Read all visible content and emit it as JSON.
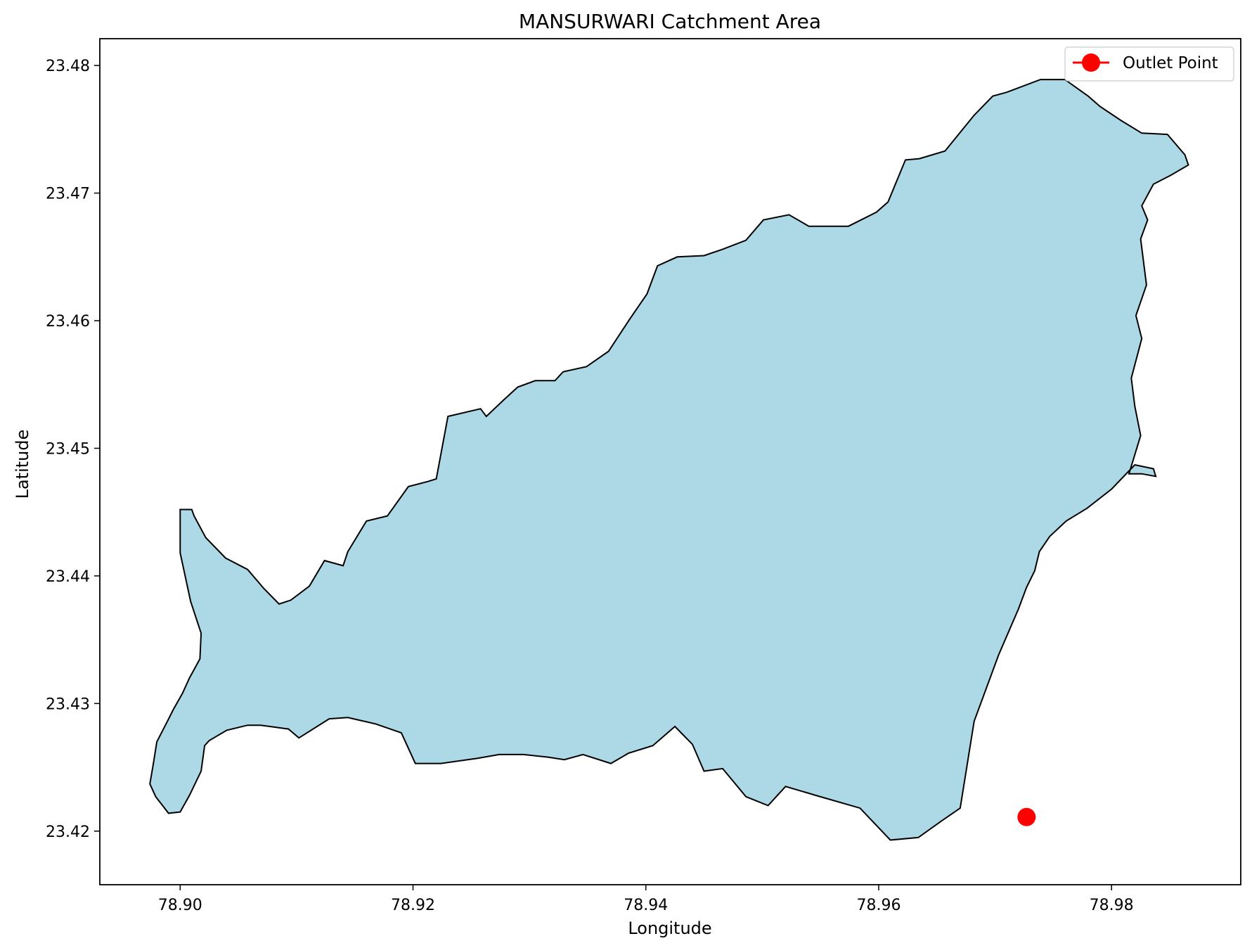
{
  "title": "MANSURWARI Catchment Area",
  "xlabel": "Longitude",
  "ylabel": "Latitude",
  "colors": {
    "catchment_fill": "#add8e6",
    "catchment_edge": "#000000",
    "outlet": "#ff0000",
    "axes": "#000000",
    "background": "#ffffff"
  },
  "chart_data": {
    "type": "scatter",
    "title": "MANSURWARI Catchment Area",
    "xlabel": "Longitude",
    "ylabel": "Latitude",
    "xlim": [
      78.8931,
      78.9911
    ],
    "ylim": [
      23.4158,
      23.4821
    ],
    "grid": false,
    "legend_placement": "top-right",
    "x_ticks": [
      78.9,
      78.92,
      78.94,
      78.96,
      78.98
    ],
    "x_tick_labels": [
      "78.90",
      "78.92",
      "78.94",
      "78.96",
      "78.98"
    ],
    "y_ticks": [
      23.42,
      23.43,
      23.44,
      23.45,
      23.46,
      23.47,
      23.48
    ],
    "y_tick_labels": [
      "23.42",
      "23.43",
      "23.44",
      "23.45",
      "23.46",
      "23.47",
      "23.48"
    ],
    "catchment_boundary": {
      "lon": [
        78.9,
        78.901,
        78.9012,
        78.9022,
        78.9039,
        78.9058,
        78.9072,
        78.9085,
        78.9095,
        78.9111,
        78.9124,
        78.914,
        78.9144,
        78.916,
        78.9178,
        78.9196,
        78.9213,
        78.922,
        78.923,
        78.9258,
        78.9263,
        78.9278,
        78.929,
        78.9305,
        78.9322,
        78.9329,
        78.9349,
        78.9368,
        78.9386,
        78.9401,
        78.941,
        78.9427,
        78.945,
        78.9466,
        78.9486,
        78.9501,
        78.9523,
        78.954,
        78.9574,
        78.9598,
        78.9608,
        78.9623,
        78.9635,
        78.9657,
        78.9682,
        78.9698,
        78.971,
        78.9739,
        78.976,
        78.978,
        78.979,
        78.9808,
        78.9826,
        78.9848,
        78.9863,
        78.9866,
        78.9851,
        78.9836,
        78.9826,
        78.9831,
        78.9825,
        78.983,
        78.9821,
        78.9826,
        78.9817,
        78.982,
        78.9825,
        78.9815,
        78.9826,
        78.9838,
        78.9836,
        78.982,
        78.98,
        78.9779,
        78.9761,
        78.9747,
        78.9738,
        78.9734,
        78.9727,
        78.972,
        78.9703,
        78.9682,
        78.967,
        78.9654,
        78.9634,
        78.961,
        78.9584,
        78.9546,
        78.952,
        78.9505,
        78.9486,
        78.9466,
        78.945,
        78.944,
        78.9425,
        78.9406,
        78.9385,
        78.937,
        78.9346,
        78.933,
        78.9316,
        78.9295,
        78.9274,
        78.9255,
        78.9224,
        78.9202,
        78.919,
        78.9168,
        78.9144,
        78.9128,
        78.9102,
        78.9093,
        78.9069,
        78.9058,
        78.904,
        78.9025,
        78.9021,
        78.9018,
        78.9008,
        78.9,
        78.899,
        78.8979,
        78.8974,
        78.8977,
        78.898,
        78.8989,
        78.8994,
        78.9002,
        78.9008,
        78.9017,
        78.9018,
        78.9009,
        78.9
      ],
      "lat": [
        23.4452,
        23.4452,
        23.4447,
        23.443,
        23.4414,
        23.4405,
        23.439,
        23.4378,
        23.4381,
        23.4392,
        23.4412,
        23.4408,
        23.4419,
        23.4443,
        23.4447,
        23.447,
        23.4474,
        23.4476,
        23.4525,
        23.4531,
        23.4525,
        23.4538,
        23.4548,
        23.4553,
        23.4553,
        23.456,
        23.4564,
        23.4576,
        23.4601,
        23.4621,
        23.4643,
        23.465,
        23.4651,
        23.4656,
        23.4663,
        23.4679,
        23.4683,
        23.4674,
        23.4674,
        23.4685,
        23.4693,
        23.4726,
        23.4727,
        23.4733,
        23.4761,
        23.4776,
        23.4779,
        23.4789,
        23.4789,
        23.4776,
        23.4768,
        23.4757,
        23.4747,
        23.4746,
        23.473,
        23.4722,
        23.4714,
        23.4707,
        23.469,
        23.4679,
        23.4664,
        23.4628,
        23.4604,
        23.4586,
        23.4555,
        23.4533,
        23.451,
        23.448,
        23.448,
        23.4478,
        23.4484,
        23.4487,
        23.4468,
        23.4453,
        23.4443,
        23.4431,
        23.4419,
        23.4404,
        23.4391,
        23.4374,
        23.4338,
        23.4286,
        23.4218,
        23.4208,
        23.4195,
        23.4193,
        23.4218,
        23.4228,
        23.4235,
        23.422,
        23.4227,
        23.4249,
        23.4247,
        23.4268,
        23.4282,
        23.4267,
        23.4261,
        23.4253,
        23.426,
        23.4256,
        23.4258,
        23.426,
        23.426,
        23.4257,
        23.4253,
        23.4253,
        23.4277,
        23.4284,
        23.4289,
        23.4288,
        23.4273,
        23.428,
        23.4283,
        23.4283,
        23.4279,
        23.4271,
        23.4267,
        23.4247,
        23.4228,
        23.4215,
        23.4214,
        23.4227,
        23.4237,
        23.4253,
        23.427,
        23.4286,
        23.4295,
        23.4308,
        23.432,
        23.4335,
        23.4355,
        23.438,
        23.4418,
        23.443,
        23.4452
      ]
    },
    "outlet_point": {
      "lon": 78.9727,
      "lat": 23.4211
    },
    "legend": [
      {
        "label": "Outlet Point",
        "marker": "circle",
        "color": "#ff0000"
      }
    ]
  }
}
